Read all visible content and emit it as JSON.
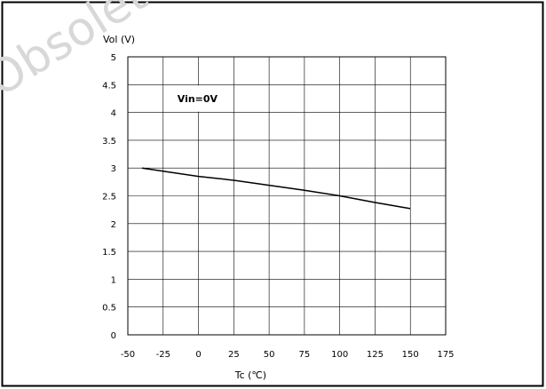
{
  "watermark": "Obsolete",
  "chart_data": {
    "type": "line",
    "title": "",
    "xlabel": "Tc (℃)",
    "ylabel": "Vol (V)",
    "xlim": [
      -50,
      175
    ],
    "ylim": [
      0,
      5
    ],
    "x_ticks": [
      -50,
      -25,
      0,
      25,
      50,
      75,
      100,
      125,
      150,
      175
    ],
    "y_ticks": [
      0,
      0.5,
      1,
      1.5,
      2,
      2.5,
      3,
      3.5,
      4,
      4.5,
      5
    ],
    "grid": true,
    "legend": false,
    "annotation": "Vin=0V",
    "series": [
      {
        "color": "#000000",
        "x": [
          -40,
          0,
          25,
          50,
          75,
          100,
          125,
          150
        ],
        "y": [
          3.0,
          2.85,
          2.78,
          2.69,
          2.6,
          2.5,
          2.38,
          2.27
        ]
      }
    ]
  }
}
